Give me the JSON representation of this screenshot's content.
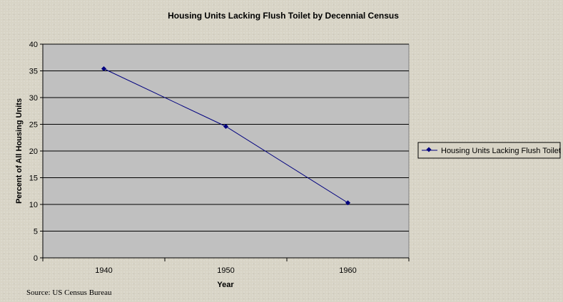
{
  "chart_data": {
    "type": "line",
    "title": "Housing Units Lacking Flush Toilet by Decennial Census",
    "xlabel": "Year",
    "ylabel": "Percent of All  Housing Units",
    "categories": [
      "1940",
      "1950",
      "1960"
    ],
    "series": [
      {
        "name": "Housing Units Lacking Flush Toilet",
        "values": [
          35.4,
          24.6,
          10.3
        ]
      }
    ],
    "ylim": [
      0,
      40
    ],
    "yticks": [
      0,
      5,
      10,
      15,
      20,
      25,
      30,
      35,
      40
    ],
    "grid": true,
    "legend_position": "right",
    "series_color": "#00007f",
    "plot_background": "#c0c0c0"
  },
  "source_note": "Source: US Census Bureau"
}
